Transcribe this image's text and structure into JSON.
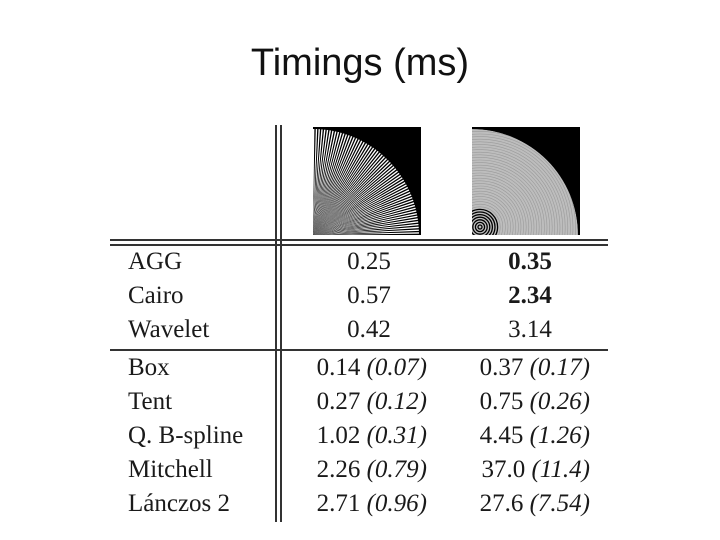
{
  "title": "Timings (ms)",
  "table": {
    "group1": [
      {
        "method": "AGG",
        "col1": "0.25",
        "col2": "0.35",
        "col2_bold": true
      },
      {
        "method": "Cairo",
        "col1": "0.57",
        "col2": "2.34",
        "col2_bold": true
      },
      {
        "method": "Wavelet",
        "col1": "0.42",
        "col2": "3.14",
        "col2_bold": false
      }
    ],
    "group2": [
      {
        "method": "Box",
        "col1": "0.14",
        "col1_paren": "(0.07)",
        "col2": "0.37",
        "col2_paren": "(0.17)"
      },
      {
        "method": "Tent",
        "col1": "0.27",
        "col1_paren": "(0.12)",
        "col2": "0.75",
        "col2_paren": "(0.26)"
      },
      {
        "method": "Q. B-spline",
        "col1": "1.02",
        "col1_paren": "(0.31)",
        "col2": "4.45",
        "col2_paren": "(1.26)"
      },
      {
        "method": "Mitchell",
        "col1": "2.26",
        "col1_paren": "(0.79)",
        "col2": "37.0",
        "col2_paren": "(11.4)"
      },
      {
        "method": "Lánczos 2",
        "col1": "2.71",
        "col1_paren": "(0.96)",
        "col2": "27.6",
        "col2_paren": "(7.54)"
      }
    ]
  },
  "images": {
    "col1": "radial-lines-test-pattern",
    "col2": "concentric-circles-test-pattern"
  }
}
